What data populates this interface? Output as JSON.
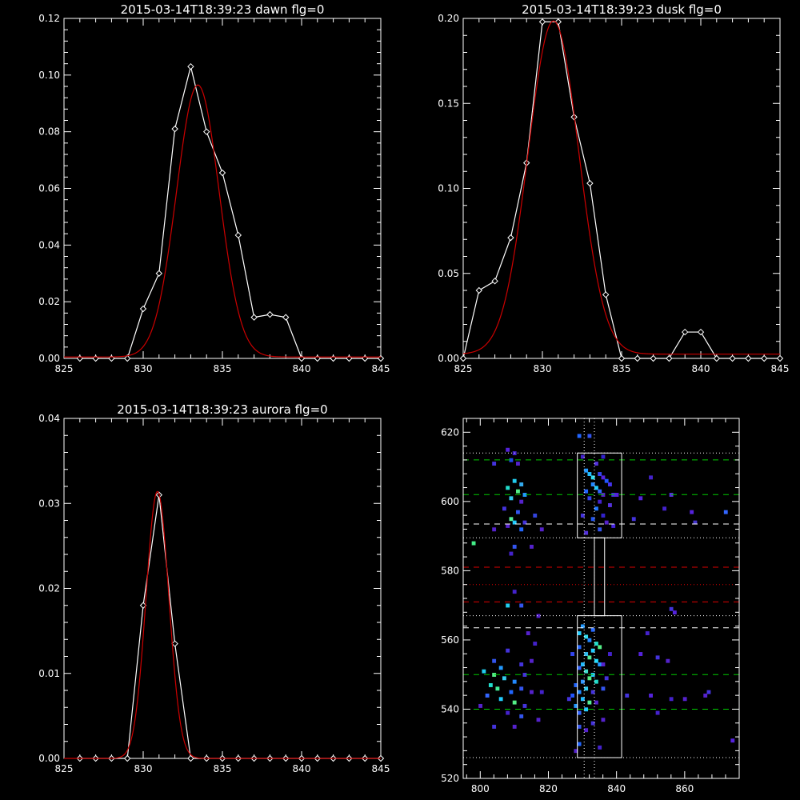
{
  "chart_data": [
    {
      "type": "line",
      "title": "2015-03-14T18:39:23 dawn flg=0",
      "xlim": [
        825,
        845
      ],
      "ylim": [
        0,
        0.12
      ],
      "xticks": [
        "825",
        "830",
        "835",
        "840",
        "845"
      ],
      "yticks": [
        "0.00",
        "0.02",
        "0.04",
        "0.06",
        "0.08",
        "0.10",
        "0.12"
      ],
      "series": [
        {
          "color": "#ffffff",
          "marker": "diamond",
          "x": [
            826,
            827,
            828,
            829,
            830,
            831,
            832,
            833,
            834,
            835,
            836,
            837,
            838,
            839,
            840,
            841,
            842,
            843,
            844,
            845
          ],
          "y": [
            0,
            0,
            0,
            0,
            0.0175,
            0.03,
            0.081,
            0.103,
            0.08,
            0.0655,
            0.0435,
            0.0145,
            0.0155,
            0.0145,
            0,
            0,
            0,
            0,
            0,
            0
          ]
        },
        {
          "color": "#cc0000",
          "marker": "none",
          "gauss": {
            "amp": 0.096,
            "mu": 833.45,
            "sigma": 1.35,
            "base": 0.0005
          }
        }
      ]
    },
    {
      "type": "line",
      "title": "2015-03-14T18:39:23 dusk flg=0",
      "xlim": [
        825,
        845
      ],
      "ylim": [
        0,
        0.2
      ],
      "xticks": [
        "825",
        "830",
        "835",
        "840",
        "845"
      ],
      "yticks": [
        "0.00",
        "0.05",
        "0.10",
        "0.15",
        "0.20"
      ],
      "series": [
        {
          "color": "#ffffff",
          "marker": "diamond",
          "x": [
            825,
            826,
            827,
            828,
            829,
            830,
            831,
            832,
            833,
            834,
            835,
            836,
            837,
            838,
            839,
            840,
            841,
            842,
            843,
            844,
            845
          ],
          "y": [
            0,
            0.04,
            0.0455,
            0.071,
            0.115,
            0.198,
            0.198,
            0.142,
            0.103,
            0.0375,
            0,
            0,
            0,
            0,
            0.0155,
            0.0155,
            0,
            0,
            0,
            0,
            0
          ]
        },
        {
          "color": "#cc0000",
          "marker": "none",
          "gauss": {
            "amp": 0.196,
            "mu": 830.7,
            "sigma": 1.6,
            "base": 0.0025
          }
        }
      ]
    },
    {
      "type": "line",
      "title": "2015-03-14T18:39:23 aurora flg=0",
      "xlim": [
        825,
        845
      ],
      "ylim": [
        0,
        0.04
      ],
      "xticks": [
        "825",
        "830",
        "835",
        "840",
        "845"
      ],
      "yticks": [
        "0.00",
        "0.01",
        "0.02",
        "0.03",
        "0.04"
      ],
      "series": [
        {
          "color": "#ffffff",
          "marker": "diamond",
          "x": [
            826,
            827,
            828,
            829,
            830,
            831,
            832,
            833,
            834,
            835,
            836,
            837,
            838,
            839,
            840,
            841,
            842,
            843,
            844,
            845
          ],
          "y": [
            0,
            0,
            0,
            0,
            0.018,
            0.031,
            0.0135,
            0,
            0,
            0,
            0,
            0,
            0,
            0,
            0,
            0,
            0,
            0,
            0,
            0
          ]
        },
        {
          "color": "#cc0000",
          "marker": "none",
          "gauss": {
            "amp": 0.0314,
            "mu": 830.9,
            "sigma": 0.72,
            "base": 0
          }
        }
      ]
    },
    {
      "type": "heatmap",
      "title": "",
      "xlim": [
        795,
        876
      ],
      "ylim": [
        520,
        624
      ],
      "xticks": [
        "800",
        "820",
        "840",
        "860"
      ],
      "yticks": [
        "520",
        "540",
        "560",
        "580",
        "600",
        "620"
      ],
      "hlines": [
        {
          "y": 612,
          "color": "#00cc00",
          "style": "dashed"
        },
        {
          "y": 602,
          "color": "#00cc00",
          "style": "dashed"
        },
        {
          "y": 550,
          "color": "#00cc00",
          "style": "dashed"
        },
        {
          "y": 540,
          "color": "#00cc00",
          "style": "dashed"
        },
        {
          "y": 593.5,
          "color": "#ffffff",
          "style": "dashed"
        },
        {
          "y": 563.5,
          "color": "#ffffff",
          "style": "dashed"
        },
        {
          "y": 581,
          "color": "#dd0000",
          "style": "dashed"
        },
        {
          "y": 571,
          "color": "#dd0000",
          "style": "dashed"
        },
        {
          "y": 576,
          "color": "#dd0000",
          "style": "dotted"
        },
        {
          "y": 614,
          "color": "#ffffff",
          "style": "dotted"
        },
        {
          "y": 589.5,
          "color": "#ffffff",
          "style": "dotted"
        },
        {
          "y": 567,
          "color": "#ffffff",
          "style": "dotted"
        },
        {
          "y": 526,
          "color": "#ffffff",
          "style": "dotted"
        }
      ],
      "vlines": [
        {
          "x": 830.5,
          "color": "#ffffff",
          "style": "dotted"
        },
        {
          "x": 833.5,
          "color": "#ffffff",
          "style": "dotted"
        }
      ],
      "boxes": [
        {
          "x": [
            828.5,
            841.5
          ],
          "y": [
            589.5,
            614
          ]
        },
        {
          "x": [
            833.5,
            836.5
          ],
          "y": [
            567,
            589.5
          ]
        },
        {
          "x": [
            828.5,
            841.5
          ],
          "y": [
            526,
            567
          ]
        }
      ],
      "cells": [
        [
          829,
          619,
          "#2266ff"
        ],
        [
          832,
          619,
          "#3355ee"
        ],
        [
          808,
          615,
          "#5522dd"
        ],
        [
          810,
          614,
          "#4422cc"
        ],
        [
          804,
          611,
          "#4433dd"
        ],
        [
          809,
          612,
          "#2244ee"
        ],
        [
          811,
          611,
          "#5522cc"
        ],
        [
          830,
          613,
          "#4422cc"
        ],
        [
          836,
          613,
          "#3322cc"
        ],
        [
          834,
          611,
          "#5533dd"
        ],
        [
          831,
          609,
          "#2299ff"
        ],
        [
          832,
          608,
          "#22bbff"
        ],
        [
          833,
          607,
          "#33ddee"
        ],
        [
          835,
          608,
          "#3344ee"
        ],
        [
          836,
          607,
          "#5522dd"
        ],
        [
          837,
          606,
          "#2255ff"
        ],
        [
          838,
          605,
          "#4433ee"
        ],
        [
          833,
          605,
          "#2288ff"
        ],
        [
          834,
          604,
          "#22ccff"
        ],
        [
          835,
          603,
          "#3366ff"
        ],
        [
          836,
          602,
          "#5522cc"
        ],
        [
          839,
          602,
          "#4433dd"
        ],
        [
          840,
          602,
          "#5522dd"
        ],
        [
          831,
          603,
          "#2266ff"
        ],
        [
          832,
          601,
          "#3344ee"
        ],
        [
          835,
          600,
          "#4422cc"
        ],
        [
          838,
          599,
          "#5533dd"
        ],
        [
          834,
          598,
          "#2277ff"
        ],
        [
          836,
          596,
          "#3322cc"
        ],
        [
          830,
          596,
          "#4433dd"
        ],
        [
          833,
          595,
          "#2255ee"
        ],
        [
          837,
          594,
          "#5522cc"
        ],
        [
          839,
          593,
          "#4422dd"
        ],
        [
          835,
          592,
          "#3355ee"
        ],
        [
          831,
          591,
          "#5533dd"
        ],
        [
          810,
          606,
          "#22ccee"
        ],
        [
          812,
          605,
          "#33aaee"
        ],
        [
          808,
          604,
          "#22ddcc"
        ],
        [
          811,
          603,
          "#55ee88"
        ],
        [
          813,
          602,
          "#2299ff"
        ],
        [
          809,
          601,
          "#33ccee"
        ],
        [
          812,
          600,
          "#5522cc"
        ],
        [
          807,
          598,
          "#4433dd"
        ],
        [
          811,
          597,
          "#3355ee"
        ],
        [
          809,
          595,
          "#55ee99"
        ],
        [
          810,
          594,
          "#22ccff"
        ],
        [
          808,
          593,
          "#5522cc"
        ],
        [
          813,
          594,
          "#4433dd"
        ],
        [
          812,
          592,
          "#2266ff"
        ],
        [
          804,
          592,
          "#5522cc"
        ],
        [
          816,
          596,
          "#3344dd"
        ],
        [
          818,
          592,
          "#5522cc"
        ],
        [
          810,
          587,
          "#3355ee"
        ],
        [
          815,
          587,
          "#5522cc"
        ],
        [
          809,
          585,
          "#4422cc"
        ],
        [
          798,
          588,
          "#44ee88"
        ],
        [
          850,
          607,
          "#4422cc"
        ],
        [
          847,
          601,
          "#5522dd"
        ],
        [
          856,
          602,
          "#5533dd"
        ],
        [
          854,
          598,
          "#4422cc"
        ],
        [
          862,
          597,
          "#5522dd"
        ],
        [
          863,
          594,
          "#4433cc"
        ],
        [
          872,
          597,
          "#3366ff"
        ],
        [
          845,
          595,
          "#4433dd"
        ],
        [
          808,
          570,
          "#22ccee"
        ],
        [
          812,
          570,
          "#3355ee"
        ],
        [
          817,
          567,
          "#5522cc"
        ],
        [
          810,
          574,
          "#4422cc"
        ],
        [
          857,
          568,
          "#5522dd"
        ],
        [
          856,
          569,
          "#4433dd"
        ],
        [
          830,
          564,
          "#2299ff"
        ],
        [
          833,
          563,
          "#2266ff"
        ],
        [
          829,
          562,
          "#22ccff"
        ],
        [
          831,
          561,
          "#33ddee"
        ],
        [
          832,
          560,
          "#2288ff"
        ],
        [
          834,
          559,
          "#22ddcc"
        ],
        [
          835,
          558,
          "#55ee88"
        ],
        [
          833,
          557,
          "#22ccff"
        ],
        [
          831,
          556,
          "#33bbee"
        ],
        [
          832,
          555,
          "#55ee99"
        ],
        [
          834,
          554,
          "#22ddff"
        ],
        [
          835,
          553,
          "#2299ff"
        ],
        [
          830,
          553,
          "#22bbff"
        ],
        [
          829,
          552,
          "#3366ff"
        ],
        [
          831,
          551,
          "#44ddcc"
        ],
        [
          833,
          550,
          "#22ccff"
        ],
        [
          832,
          549,
          "#55ee88"
        ],
        [
          830,
          548,
          "#3399ff"
        ],
        [
          834,
          548,
          "#22ddcc"
        ],
        [
          828,
          547,
          "#2266ff"
        ],
        [
          831,
          546,
          "#33ccee"
        ],
        [
          829,
          545,
          "#2288ff"
        ],
        [
          833,
          545,
          "#4433dd"
        ],
        [
          827,
          544,
          "#2255ff"
        ],
        [
          830,
          543,
          "#22bbff"
        ],
        [
          832,
          542,
          "#55ee99"
        ],
        [
          828,
          541,
          "#2299ff"
        ],
        [
          831,
          540,
          "#22ccff"
        ],
        [
          829,
          539,
          "#3366ff"
        ],
        [
          826,
          543,
          "#4433dd"
        ],
        [
          834,
          542,
          "#5522cc"
        ],
        [
          836,
          546,
          "#3355ee"
        ],
        [
          837,
          549,
          "#4433dd"
        ],
        [
          836,
          553,
          "#5522cc"
        ],
        [
          838,
          556,
          "#4422cc"
        ],
        [
          827,
          556,
          "#3344ee"
        ],
        [
          829,
          558,
          "#2266ff"
        ],
        [
          836,
          537,
          "#5522cc"
        ],
        [
          833,
          536,
          "#4433dd"
        ],
        [
          829,
          535,
          "#3355ee"
        ],
        [
          831,
          534,
          "#5522cc"
        ],
        [
          829,
          530,
          "#2266ff"
        ],
        [
          828,
          528,
          "#5522cc"
        ],
        [
          835,
          529,
          "#4422cc"
        ],
        [
          808,
          557,
          "#4433dd"
        ],
        [
          814,
          562,
          "#5522cc"
        ],
        [
          816,
          559,
          "#4422cc"
        ],
        [
          804,
          554,
          "#3355ee"
        ],
        [
          806,
          552,
          "#2299ff"
        ],
        [
          812,
          553,
          "#4433dd"
        ],
        [
          815,
          554,
          "#5522cc"
        ],
        [
          801,
          551,
          "#22ccee"
        ],
        [
          804,
          550,
          "#55ee88"
        ],
        [
          807,
          549,
          "#33ccee"
        ],
        [
          810,
          548,
          "#2288ff"
        ],
        [
          813,
          550,
          "#4433dd"
        ],
        [
          803,
          547,
          "#22ddcc"
        ],
        [
          805,
          546,
          "#44ee99"
        ],
        [
          809,
          545,
          "#2266ff"
        ],
        [
          812,
          546,
          "#3355ee"
        ],
        [
          815,
          545,
          "#5522cc"
        ],
        [
          818,
          545,
          "#4422cc"
        ],
        [
          802,
          544,
          "#3366ff"
        ],
        [
          806,
          543,
          "#22ccff"
        ],
        [
          810,
          542,
          "#55ee88"
        ],
        [
          813,
          541,
          "#4433dd"
        ],
        [
          800,
          541,
          "#5522cc"
        ],
        [
          808,
          539,
          "#4422cc"
        ],
        [
          812,
          538,
          "#3355ee"
        ],
        [
          817,
          537,
          "#5522cc"
        ],
        [
          804,
          535,
          "#4433dd"
        ],
        [
          810,
          535,
          "#5522cc"
        ],
        [
          849,
          562,
          "#4422cc"
        ],
        [
          847,
          556,
          "#5522dd"
        ],
        [
          852,
          555,
          "#4433dd"
        ],
        [
          855,
          554,
          "#5522cc"
        ],
        [
          843,
          544,
          "#4433dd"
        ],
        [
          850,
          544,
          "#5522dd"
        ],
        [
          856,
          543,
          "#4422cc"
        ],
        [
          860,
          543,
          "#5522cc"
        ],
        [
          867,
          545,
          "#4433dd"
        ],
        [
          866,
          544,
          "#5522cc"
        ],
        [
          852,
          539,
          "#4422cc"
        ],
        [
          874,
          531,
          "#5522dd"
        ]
      ]
    }
  ]
}
